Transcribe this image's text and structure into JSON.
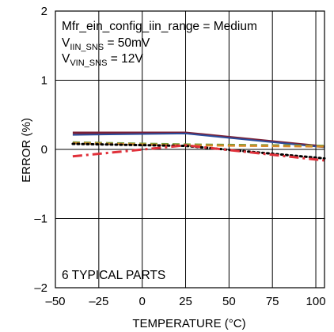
{
  "chart_data": {
    "type": "line",
    "title": "",
    "xlabel": "TEMPERATURE (°C)",
    "ylabel": "ERROR (%)",
    "xlim": [
      -50,
      105
    ],
    "ylim": [
      -2,
      2
    ],
    "xticks": [
      -50,
      -25,
      0,
      25,
      50,
      75,
      100
    ],
    "yticks": [
      -2,
      -1,
      0,
      1,
      2
    ],
    "xtick_labels": [
      "–50",
      "–25",
      "0",
      "25",
      "50",
      "75",
      "100"
    ],
    "ytick_labels": [
      "–2",
      "–1",
      "0",
      "1",
      "2"
    ],
    "grid": true,
    "legend": "none",
    "annotations": {
      "line1": "Mfr_ein_config_iin_range = Medium",
      "line2_main": "V",
      "line2_sub": "IIN_SNS",
      "line2_rest": " = 50mV",
      "line3_main": "V",
      "line3_sub": "VIN_SNS",
      "line3_rest": " = 12V",
      "parts_label": "6 TYPICAL PARTS"
    },
    "series": [
      {
        "x": [
          -40,
          25,
          105
        ],
        "values": [
          0.24,
          0.24,
          0.04
        ],
        "color": "#7a1f35",
        "style": "solid",
        "width": 3
      },
      {
        "x": [
          -40,
          25,
          105
        ],
        "values": [
          0.21,
          0.23,
          0.03
        ],
        "color": "#2b4c9c",
        "style": "solid",
        "width": 2
      },
      {
        "x": [
          -40,
          25,
          105
        ],
        "values": [
          0.1,
          0.07,
          0.05
        ],
        "color": "#6f9a3a",
        "style": "dash",
        "width": 3
      },
      {
        "x": [
          -40,
          25,
          105
        ],
        "values": [
          0.09,
          0.06,
          0.04
        ],
        "color": "#d9892a",
        "style": "dash",
        "width": 2.5
      },
      {
        "x": [
          -40,
          25,
          105
        ],
        "values": [
          0.08,
          0.05,
          -0.13
        ],
        "color": "#000000",
        "style": "dot",
        "width": 3
      },
      {
        "x": [
          -40,
          25,
          105
        ],
        "values": [
          -0.1,
          0.06,
          -0.16
        ],
        "color": "#e0303a",
        "style": "dashdot",
        "width": 3
      }
    ]
  }
}
